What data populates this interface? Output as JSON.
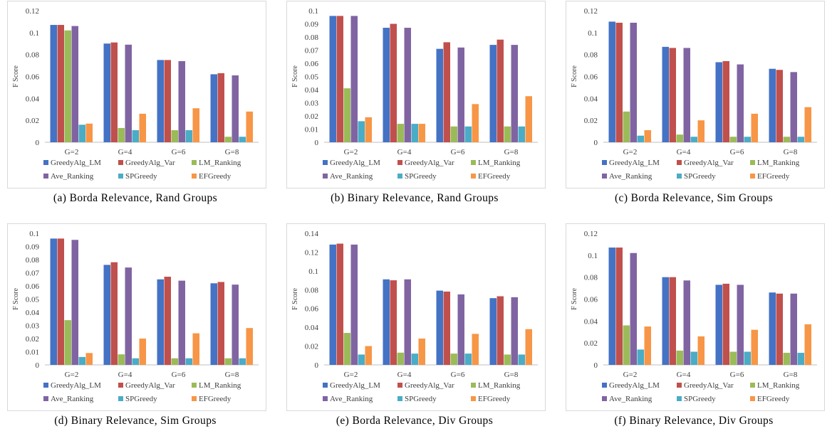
{
  "legend_colors": {
    "GreedyAlg_LM": "#4472C4",
    "GreedyAlg_Var": "#C0504D",
    "LM_Ranking": "#9BBB59",
    "Ave_Ranking": "#8064A2",
    "SPGreedy": "#4BACC6",
    "EFGreedy": "#F79646"
  },
  "chart_data": [
    {
      "type": "bar",
      "caption": "(a) Borda Relevance, Rand Groups",
      "ylabel": "F Score",
      "categories": [
        "G=2",
        "G=4",
        "G=6",
        "G=8"
      ],
      "ylim": [
        0,
        0.12
      ],
      "yticks": [
        "0",
        "0.02",
        "0.04",
        "0.06",
        "0.08",
        "0.1",
        "0.12"
      ],
      "yticks_values": [
        0,
        0.02,
        0.04,
        0.06,
        0.08,
        0.1,
        0.12
      ],
      "series": [
        {
          "name": "GreedyAlg_LM",
          "values": [
            0.107,
            0.09,
            0.075,
            0.062
          ]
        },
        {
          "name": "GreedyAlg_Var",
          "values": [
            0.107,
            0.091,
            0.075,
            0.063
          ]
        },
        {
          "name": "LM_Ranking",
          "values": [
            0.102,
            0.013,
            0.011,
            0.005
          ]
        },
        {
          "name": "Ave_Ranking",
          "values": [
            0.106,
            0.089,
            0.074,
            0.061
          ]
        },
        {
          "name": "SPGreedy",
          "values": [
            0.016,
            0.011,
            0.011,
            0.005
          ]
        },
        {
          "name": "EFGreedy",
          "values": [
            0.017,
            0.026,
            0.031,
            0.028
          ]
        }
      ]
    },
    {
      "type": "bar",
      "caption": "(b) Binary Relevance, Rand Groups",
      "ylabel": "F Score",
      "categories": [
        "G=2",
        "G=4",
        "G=6",
        "G=8"
      ],
      "ylim": [
        0,
        0.1
      ],
      "yticks": [
        "0",
        "0.01",
        "0.02",
        "0.03",
        "0.04",
        "0.05",
        "0.06",
        "0.07",
        "0.08",
        "0.09",
        "0.1"
      ],
      "yticks_values": [
        0,
        0.01,
        0.02,
        0.03,
        0.04,
        0.05,
        0.06,
        0.07,
        0.08,
        0.09,
        0.1
      ],
      "series": [
        {
          "name": "GreedyAlg_LM",
          "values": [
            0.096,
            0.087,
            0.071,
            0.074
          ]
        },
        {
          "name": "GreedyAlg_Var",
          "values": [
            0.096,
            0.09,
            0.076,
            0.078
          ]
        },
        {
          "name": "LM_Ranking",
          "values": [
            0.041,
            0.014,
            0.012,
            0.012
          ]
        },
        {
          "name": "Ave_Ranking",
          "values": [
            0.096,
            0.087,
            0.072,
            0.074
          ]
        },
        {
          "name": "SPGreedy",
          "values": [
            0.016,
            0.014,
            0.012,
            0.012
          ]
        },
        {
          "name": "EFGreedy",
          "values": [
            0.019,
            0.014,
            0.029,
            0.035
          ]
        }
      ]
    },
    {
      "type": "bar",
      "caption": "(c) Borda Relevance, Sim Groups",
      "ylabel": "F Score",
      "categories": [
        "G=2",
        "G=4",
        "G=6",
        "G=8"
      ],
      "ylim": [
        0,
        0.12
      ],
      "yticks": [
        "0",
        "0.02",
        "0.04",
        "0.06",
        "0.08",
        "0.1",
        "0.12"
      ],
      "yticks_values": [
        0,
        0.02,
        0.04,
        0.06,
        0.08,
        0.1,
        0.12
      ],
      "series": [
        {
          "name": "GreedyAlg_LM",
          "values": [
            0.11,
            0.087,
            0.073,
            0.067
          ]
        },
        {
          "name": "GreedyAlg_Var",
          "values": [
            0.109,
            0.086,
            0.074,
            0.066
          ]
        },
        {
          "name": "LM_Ranking",
          "values": [
            0.028,
            0.007,
            0.005,
            0.005
          ]
        },
        {
          "name": "Ave_Ranking",
          "values": [
            0.109,
            0.086,
            0.071,
            0.064
          ]
        },
        {
          "name": "SPGreedy",
          "values": [
            0.006,
            0.005,
            0.005,
            0.005
          ]
        },
        {
          "name": "EFGreedy",
          "values": [
            0.011,
            0.02,
            0.026,
            0.032
          ]
        }
      ]
    },
    {
      "type": "bar",
      "caption": "(d) Binary Relevance, Sim Groups",
      "ylabel": "F Score",
      "categories": [
        "G=2",
        "G=4",
        "G=6",
        "G=8"
      ],
      "ylim": [
        0,
        0.1
      ],
      "yticks": [
        "0",
        "0.01",
        "0.02",
        "0.03",
        "0.04",
        "0.05",
        "0.06",
        "0.07",
        "0.08",
        "0.09",
        "0.1"
      ],
      "yticks_values": [
        0,
        0.01,
        0.02,
        0.03,
        0.04,
        0.05,
        0.06,
        0.07,
        0.08,
        0.09,
        0.1
      ],
      "series": [
        {
          "name": "GreedyAlg_LM",
          "values": [
            0.096,
            0.076,
            0.065,
            0.062
          ]
        },
        {
          "name": "GreedyAlg_Var",
          "values": [
            0.096,
            0.078,
            0.067,
            0.063
          ]
        },
        {
          "name": "LM_Ranking",
          "values": [
            0.034,
            0.008,
            0.005,
            0.005
          ]
        },
        {
          "name": "Ave_Ranking",
          "values": [
            0.095,
            0.074,
            0.064,
            0.061
          ]
        },
        {
          "name": "SPGreedy",
          "values": [
            0.006,
            0.005,
            0.005,
            0.005
          ]
        },
        {
          "name": "EFGreedy",
          "values": [
            0.009,
            0.02,
            0.024,
            0.028
          ]
        }
      ]
    },
    {
      "type": "bar",
      "caption": "(e) Borda Relevance, Div Groups",
      "ylabel": "F Score",
      "categories": [
        "G=2",
        "G=4",
        "G=6",
        "G=8"
      ],
      "ylim": [
        0,
        0.14
      ],
      "yticks": [
        "0",
        "0.02",
        "0.04",
        "0.06",
        "0.08",
        "0.1",
        "0.12",
        "0.14"
      ],
      "yticks_values": [
        0,
        0.02,
        0.04,
        0.06,
        0.08,
        0.1,
        0.12,
        0.14
      ],
      "series": [
        {
          "name": "GreedyAlg_LM",
          "values": [
            0.128,
            0.091,
            0.079,
            0.071
          ]
        },
        {
          "name": "GreedyAlg_Var",
          "values": [
            0.129,
            0.09,
            0.078,
            0.073
          ]
        },
        {
          "name": "LM_Ranking",
          "values": [
            0.034,
            0.013,
            0.012,
            0.011
          ]
        },
        {
          "name": "Ave_Ranking",
          "values": [
            0.128,
            0.091,
            0.075,
            0.072
          ]
        },
        {
          "name": "SPGreedy",
          "values": [
            0.011,
            0.012,
            0.012,
            0.011
          ]
        },
        {
          "name": "EFGreedy",
          "values": [
            0.02,
            0.028,
            0.033,
            0.038
          ]
        }
      ]
    },
    {
      "type": "bar",
      "caption": "(f) Binary Relevance, Div Groups",
      "ylabel": "F Score",
      "categories": [
        "G=2",
        "G=4",
        "G=6",
        "G=8"
      ],
      "ylim": [
        0,
        0.12
      ],
      "yticks": [
        "0",
        "0.02",
        "0.04",
        "0.06",
        "0.08",
        "0.1",
        "0.12"
      ],
      "yticks_values": [
        0,
        0.02,
        0.04,
        0.06,
        0.08,
        0.1,
        0.12
      ],
      "series": [
        {
          "name": "GreedyAlg_LM",
          "values": [
            0.107,
            0.08,
            0.073,
            0.066
          ]
        },
        {
          "name": "GreedyAlg_Var",
          "values": [
            0.107,
            0.08,
            0.074,
            0.065
          ]
        },
        {
          "name": "LM_Ranking",
          "values": [
            0.036,
            0.013,
            0.012,
            0.011
          ]
        },
        {
          "name": "Ave_Ranking",
          "values": [
            0.102,
            0.077,
            0.073,
            0.065
          ]
        },
        {
          "name": "SPGreedy",
          "values": [
            0.014,
            0.012,
            0.012,
            0.011
          ]
        },
        {
          "name": "EFGreedy",
          "values": [
            0.035,
            0.026,
            0.032,
            0.037
          ]
        }
      ]
    }
  ]
}
